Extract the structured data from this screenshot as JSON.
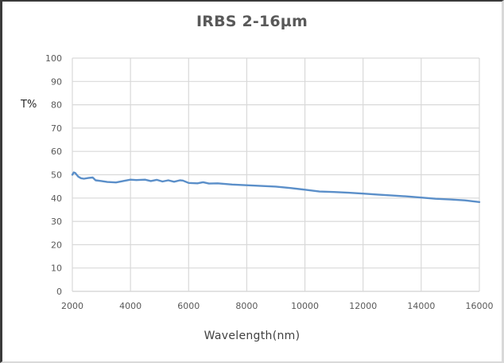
{
  "chart_data": {
    "type": "line",
    "title": "IRBS 2-16µm",
    "xlabel": "Wavelength(nm)",
    "ylabel": "T%",
    "xlim": [
      2000,
      16000
    ],
    "ylim": [
      0,
      100
    ],
    "x_ticks": [
      2000,
      4000,
      6000,
      8000,
      10000,
      12000,
      14000,
      16000
    ],
    "y_ticks": [
      0,
      10,
      20,
      30,
      40,
      50,
      60,
      70,
      80,
      90,
      100
    ],
    "grid": true,
    "legend": "none",
    "series": [
      {
        "name": "T%",
        "color": "#5b8fc9",
        "x": [
          2000,
          2050,
          2100,
          2200,
          2300,
          2400,
          2550,
          2700,
          2800,
          3000,
          3200,
          3500,
          3800,
          4000,
          4200,
          4500,
          4700,
          4900,
          5100,
          5300,
          5500,
          5700,
          5800,
          6000,
          6300,
          6500,
          6700,
          7000,
          7500,
          8000,
          8500,
          9000,
          9500,
          10000,
          10500,
          11000,
          11500,
          12000,
          12500,
          13000,
          13500,
          14000,
          14500,
          15000,
          15500,
          16000
        ],
        "y": [
          50.0,
          51.0,
          50.7,
          49.2,
          48.5,
          48.3,
          48.6,
          48.8,
          47.6,
          47.3,
          46.9,
          46.7,
          47.4,
          47.9,
          47.7,
          47.9,
          47.3,
          47.8,
          47.1,
          47.6,
          47.0,
          47.6,
          47.5,
          46.5,
          46.3,
          46.8,
          46.2,
          46.3,
          45.8,
          45.5,
          45.2,
          44.9,
          44.3,
          43.6,
          42.8,
          42.6,
          42.3,
          41.9,
          41.5,
          41.1,
          40.7,
          40.2,
          39.7,
          39.4,
          39.0,
          38.3
        ]
      }
    ]
  },
  "colors": {
    "line": "#5b8fc9",
    "grid": "#d9d9d9",
    "tick_text": "#595959",
    "title_text": "#595959"
  }
}
